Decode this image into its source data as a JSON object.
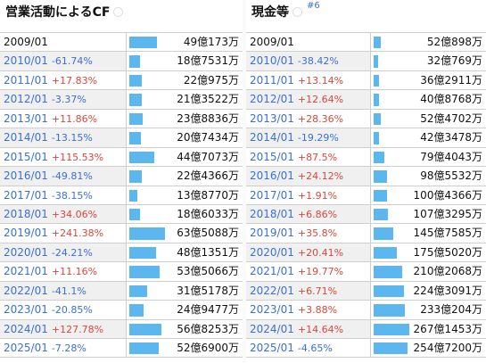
{
  "left": {
    "title": "営業活動によるCF",
    "rows": [
      {
        "date": "2009/01",
        "change": "",
        "value": "49億173万",
        "bar": 0.77
      },
      {
        "date": "2010/01",
        "change": "-61.74%",
        "value": "18億7531万",
        "bar": 0.3
      },
      {
        "date": "2011/01",
        "change": "+17.83%",
        "value": "22億975万",
        "bar": 0.35
      },
      {
        "date": "2012/01",
        "change": "-3.37%",
        "value": "21億3522万",
        "bar": 0.34
      },
      {
        "date": "2013/01",
        "change": "+11.86%",
        "value": "23億8836万",
        "bar": 0.38
      },
      {
        "date": "2014/01",
        "change": "-13.15%",
        "value": "20億7434万",
        "bar": 0.33
      },
      {
        "date": "2015/01",
        "change": "+115.53%",
        "value": "44億7073万",
        "bar": 0.71
      },
      {
        "date": "2016/01",
        "change": "-49.81%",
        "value": "22億4366万",
        "bar": 0.35
      },
      {
        "date": "2017/01",
        "change": "-38.15%",
        "value": "13億8770万",
        "bar": 0.22
      },
      {
        "date": "2018/01",
        "change": "+34.06%",
        "value": "18億6033万",
        "bar": 0.29
      },
      {
        "date": "2019/01",
        "change": "+241.38%",
        "value": "63億5088万",
        "bar": 1.0
      },
      {
        "date": "2020/01",
        "change": "-24.21%",
        "value": "48億1351万",
        "bar": 0.76
      },
      {
        "date": "2021/01",
        "change": "+11.16%",
        "value": "53億5066万",
        "bar": 0.84
      },
      {
        "date": "2022/01",
        "change": "-41.1%",
        "value": "31億5178万",
        "bar": 0.5
      },
      {
        "date": "2023/01",
        "change": "-20.85%",
        "value": "24億9477万",
        "bar": 0.39
      },
      {
        "date": "2024/01",
        "change": "+127.78%",
        "value": "56億8253万",
        "bar": 0.89
      },
      {
        "date": "2025/01",
        "change": "-7.28%",
        "value": "52億6900万",
        "bar": 0.83
      }
    ]
  },
  "right": {
    "title": "現金等",
    "note": "#6",
    "rows": [
      {
        "date": "2009/01",
        "change": "",
        "value": "52億898万",
        "bar": 0.2
      },
      {
        "date": "2010/01",
        "change": "-38.42%",
        "value": "32億769万",
        "bar": 0.12
      },
      {
        "date": "2011/01",
        "change": "+13.14%",
        "value": "36億2911万",
        "bar": 0.14
      },
      {
        "date": "2012/01",
        "change": "+12.64%",
        "value": "40億8768万",
        "bar": 0.15
      },
      {
        "date": "2013/01",
        "change": "+28.36%",
        "value": "52億4702万",
        "bar": 0.2
      },
      {
        "date": "2014/01",
        "change": "-19.29%",
        "value": "42億3478万",
        "bar": 0.16
      },
      {
        "date": "2015/01",
        "change": "+87.5%",
        "value": "79億4043万",
        "bar": 0.3
      },
      {
        "date": "2016/01",
        "change": "+24.12%",
        "value": "98億5532万",
        "bar": 0.37
      },
      {
        "date": "2017/01",
        "change": "+1.91%",
        "value": "100億4366万",
        "bar": 0.38
      },
      {
        "date": "2018/01",
        "change": "+6.86%",
        "value": "107億3295万",
        "bar": 0.4
      },
      {
        "date": "2019/01",
        "change": "+35.8%",
        "value": "145億7585万",
        "bar": 0.55
      },
      {
        "date": "2020/01",
        "change": "+20.41%",
        "value": "175億5020万",
        "bar": 0.66
      },
      {
        "date": "2021/01",
        "change": "+19.77%",
        "value": "210億2068万",
        "bar": 0.79
      },
      {
        "date": "2022/01",
        "change": "+6.71%",
        "value": "224億3091万",
        "bar": 0.84
      },
      {
        "date": "2023/01",
        "change": "+3.88%",
        "value": "233億204万",
        "bar": 0.87
      },
      {
        "date": "2024/01",
        "change": "+14.64%",
        "value": "267億1453万",
        "bar": 1.0
      },
      {
        "date": "2025/01",
        "change": "-4.65%",
        "value": "254億7200万",
        "bar": 0.95
      }
    ]
  },
  "colors": {
    "bar": "#5cb7ee",
    "positive": "#d9473c",
    "negative": "#3a6fd8",
    "date_link": "#3a6fd8"
  }
}
